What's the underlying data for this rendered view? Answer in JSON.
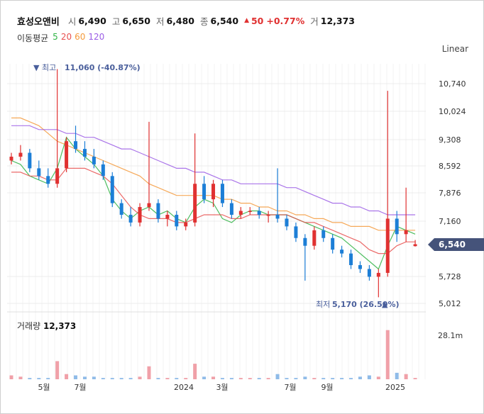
{
  "stock": {
    "name": "효성오앤비"
  },
  "quote": {
    "open_label": "시",
    "open": "6,490",
    "high_label": "고",
    "high": "6,650",
    "low_label": "저",
    "low": "6,480",
    "close_label": "종",
    "close": "6,540",
    "change_arrow": "▲",
    "change": "50",
    "change_pct": "+0.77%",
    "volume_label": "거",
    "volume": "12,373"
  },
  "moving_average": {
    "title": "이동평균",
    "periods": [
      {
        "label": "5",
        "color": "#2fb344"
      },
      {
        "label": "20",
        "color": "#e8504f"
      },
      {
        "label": "60",
        "color": "#f59a3c"
      },
      {
        "label": "120",
        "color": "#9b5de5"
      }
    ]
  },
  "scale_label": "Linear",
  "markers": {
    "high": {
      "prefix": "▼ 최고",
      "value": "11,060 (-40.87%)"
    },
    "low": {
      "prefix": "최저",
      "value": "5,170 (26.50%)",
      "suffix": "▲"
    }
  },
  "volume_panel": {
    "label": "거래량",
    "value": "12,373",
    "axis_label": "28.1m"
  },
  "colors": {
    "up": "#e03131",
    "down": "#1c7ed6",
    "current_badge": "#45537a",
    "vol_up": "#f0a0a8",
    "vol_down": "#8fbbe8"
  },
  "chart_data": {
    "type": "candlestick",
    "y_ticks": [
      "10,740",
      "10,024",
      "9,308",
      "8,592",
      "7,876",
      "7,160",
      "6,540",
      "5,728",
      "5,012"
    ],
    "ylim": [
      5012,
      10740
    ],
    "x_labels": [
      "5월",
      "7월",
      "2024",
      "3월",
      "7월",
      "9월",
      "2025"
    ],
    "current_price": "6,540",
    "period_high": 11060,
    "period_low": 5170,
    "series": [
      {
        "name": "5",
        "values": [
          8700,
          8600,
          8300,
          8200,
          8100,
          8500,
          9300,
          9000,
          8800,
          8600,
          8300,
          7700,
          7400,
          7200,
          7400,
          7500,
          7300,
          7400,
          7200,
          7100,
          7500,
          7700,
          7600,
          7200,
          7100,
          7300,
          7400,
          7400,
          7300,
          7300,
          7300,
          7200,
          7100,
          7000,
          6900,
          6800,
          6700,
          6500,
          6300,
          6100,
          5900,
          6500,
          7000,
          6900,
          6800
        ]
      },
      {
        "name": "20",
        "values": [
          8400,
          8400,
          8300,
          8300,
          8200,
          8200,
          8500,
          8500,
          8500,
          8400,
          8300,
          8100,
          7800,
          7500,
          7300,
          7200,
          7200,
          7200,
          7100,
          7100,
          7200,
          7300,
          7300,
          7300,
          7200,
          7200,
          7300,
          7300,
          7300,
          7300,
          7300,
          7200,
          7100,
          7100,
          7000,
          6900,
          6800,
          6700,
          6600,
          6400,
          6300,
          6300,
          6500,
          6600,
          6600
        ]
      },
      {
        "name": "60",
        "values": [
          9800,
          9800,
          9700,
          9600,
          9400,
          9200,
          9100,
          9000,
          8900,
          8800,
          8700,
          8600,
          8500,
          8400,
          8300,
          8100,
          8000,
          7900,
          7800,
          7800,
          7800,
          7800,
          7800,
          7700,
          7700,
          7600,
          7600,
          7500,
          7500,
          7400,
          7400,
          7300,
          7300,
          7200,
          7200,
          7100,
          7100,
          7000,
          7000,
          7000,
          6900,
          6900,
          6900,
          6900,
          6900
        ]
      },
      {
        "name": "120",
        "values": [
          9600,
          9600,
          9600,
          9500,
          9500,
          9500,
          9400,
          9400,
          9300,
          9300,
          9200,
          9100,
          9000,
          9000,
          8900,
          8800,
          8700,
          8600,
          8500,
          8500,
          8400,
          8400,
          8300,
          8200,
          8200,
          8100,
          8100,
          8100,
          8100,
          8100,
          8000,
          8000,
          7900,
          7800,
          7700,
          7600,
          7600,
          7500,
          7500,
          7400,
          7400,
          7300,
          7300,
          7300,
          7300
        ]
      }
    ],
    "candles": [
      [
        8700,
        8900,
        8600,
        8800
      ],
      [
        8800,
        9100,
        8700,
        8900
      ],
      [
        8900,
        9000,
        8400,
        8500
      ],
      [
        8500,
        8700,
        8200,
        8300
      ],
      [
        8300,
        8500,
        8000,
        8100
      ],
      [
        8100,
        11060,
        8000,
        8500
      ],
      [
        8500,
        9300,
        8400,
        9200
      ],
      [
        9200,
        9600,
        8900,
        9000
      ],
      [
        9000,
        9200,
        8700,
        8800
      ],
      [
        8800,
        9000,
        8500,
        8600
      ],
      [
        8600,
        8700,
        8200,
        8300
      ],
      [
        8300,
        8400,
        7500,
        7600
      ],
      [
        7600,
        7700,
        7200,
        7300
      ],
      [
        7300,
        7500,
        7000,
        7100
      ],
      [
        7100,
        7600,
        7000,
        7500
      ],
      [
        7500,
        9700,
        7400,
        7600
      ],
      [
        7600,
        7700,
        7100,
        7200
      ],
      [
        7200,
        7400,
        7000,
        7300
      ],
      [
        7300,
        7400,
        6900,
        7000
      ],
      [
        7000,
        7200,
        6900,
        7100
      ],
      [
        7100,
        9400,
        7000,
        8100
      ],
      [
        8100,
        8300,
        7600,
        7700
      ],
      [
        7700,
        8200,
        7500,
        8100
      ],
      [
        8100,
        8200,
        7500,
        7600
      ],
      [
        7600,
        7700,
        7200,
        7300
      ],
      [
        7300,
        7500,
        7200,
        7400
      ],
      [
        7400,
        7500,
        7300,
        7400
      ],
      [
        7400,
        7500,
        7200,
        7300
      ],
      [
        7300,
        7400,
        7100,
        7300
      ],
      [
        7300,
        8500,
        7100,
        7200
      ],
      [
        7200,
        7300,
        6900,
        7000
      ],
      [
        7000,
        7100,
        6600,
        6700
      ],
      [
        6700,
        6800,
        5600,
        6500
      ],
      [
        6500,
        7000,
        6400,
        6900
      ],
      [
        6900,
        7000,
        6600,
        6700
      ],
      [
        6700,
        6800,
        6300,
        6400
      ],
      [
        6400,
        6500,
        6200,
        6300
      ],
      [
        6300,
        6400,
        5900,
        6000
      ],
      [
        6000,
        6100,
        5800,
        5900
      ],
      [
        5900,
        6000,
        5600,
        5700
      ],
      [
        5700,
        5900,
        5170,
        5800
      ],
      [
        5800,
        10500,
        5700,
        7200
      ],
      [
        7200,
        7400,
        6600,
        6800
      ],
      [
        6800,
        8000,
        6600,
        6900
      ],
      [
        6490,
        6650,
        6480,
        6540
      ]
    ],
    "volume": [
      3,
      2,
      1,
      1,
      1,
      14,
      4,
      3,
      2,
      2,
      1,
      1,
      1,
      1,
      2,
      10,
      1,
      1,
      1,
      1,
      12,
      2,
      2,
      1,
      1,
      1,
      1,
      1,
      1,
      4,
      1,
      1,
      2,
      1,
      1,
      1,
      1,
      1,
      2,
      3,
      2,
      38,
      5,
      4,
      1
    ]
  }
}
